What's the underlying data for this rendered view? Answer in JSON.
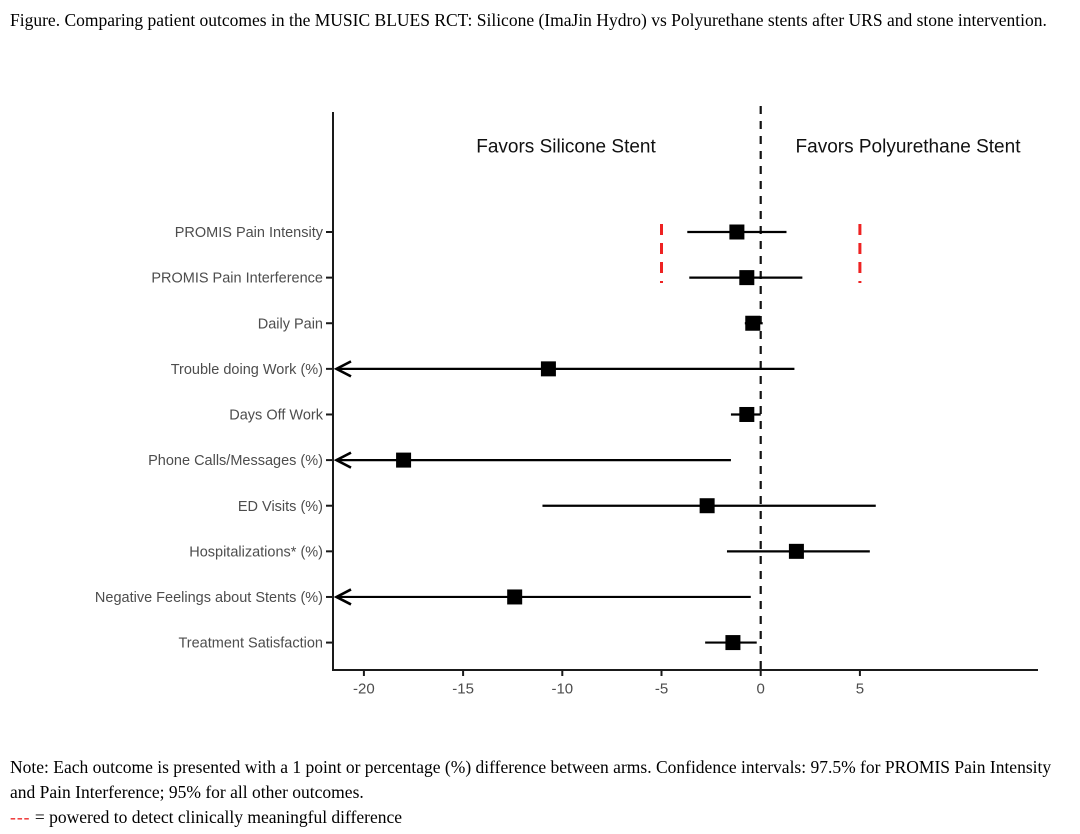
{
  "figure_caption": "Figure. Comparing patient outcomes in the MUSIC BLUES RCT: Silicone (ImaJin Hydro) vs Polyurethane stents after URS and stone intervention.",
  "note": {
    "line1": "Note: Each outcome is presented with a 1 point or percentage (%) difference between arms. Confidence intervals: 97.5% for PROMIS Pain Intensity and Pain Interference; 95% for all other outcomes.",
    "legend_symbol": "---",
    "legend_text": " = powered to detect clinically meaningful difference"
  },
  "chart_data": {
    "type": "forest",
    "title": "",
    "xlabel": "",
    "x_ticks": [
      -20,
      -15,
      -10,
      -5,
      0,
      5
    ],
    "xlim": [
      -21.6,
      14.0
    ],
    "zero_line": 0,
    "grid": false,
    "annotations": {
      "favors_left": "Favors Silicone Stent",
      "favors_right": "Favors Polyurethane Stent"
    },
    "reference_lines": {
      "values": [
        -5,
        5
      ],
      "style": "dashed",
      "meaning": "powered to detect clinically meaningful difference"
    },
    "rows": [
      {
        "label": "PROMIS Pain Intensity",
        "estimate": -1.2,
        "ci_low": -3.7,
        "ci_high": 1.3,
        "arrow_left": false
      },
      {
        "label": "PROMIS Pain Interference",
        "estimate": -0.7,
        "ci_low": -3.6,
        "ci_high": 2.1,
        "arrow_left": false
      },
      {
        "label": "Daily Pain",
        "estimate": -0.4,
        "ci_low": -0.8,
        "ci_high": 0.1,
        "arrow_left": false
      },
      {
        "label": "Trouble doing Work (%)",
        "estimate": -10.7,
        "ci_low": -21.5,
        "ci_high": 1.7,
        "arrow_left": true
      },
      {
        "label": "Days Off Work",
        "estimate": -0.7,
        "ci_low": -1.5,
        "ci_high": 0.0,
        "arrow_left": false
      },
      {
        "label": "Phone Calls/Messages (%)",
        "estimate": -18.0,
        "ci_low": -21.5,
        "ci_high": -1.5,
        "arrow_left": true
      },
      {
        "label": "ED Visits (%)",
        "estimate": -2.7,
        "ci_low": -11.0,
        "ci_high": 5.8,
        "arrow_left": false
      },
      {
        "label": "Hospitalizations* (%)",
        "estimate": 1.8,
        "ci_low": -1.7,
        "ci_high": 5.5,
        "arrow_left": false
      },
      {
        "label": "Negative Feelings about Stents (%)",
        "estimate": -12.4,
        "ci_low": -21.5,
        "ci_high": -0.5,
        "arrow_left": true
      },
      {
        "label": "Treatment Satisfaction",
        "estimate": -1.4,
        "ci_low": -2.8,
        "ci_high": -0.2,
        "arrow_left": false
      }
    ],
    "colors": {
      "marker": "#000000",
      "axis_line": "#1a1a1a",
      "axis_text": "#4d4d4d",
      "annotation_text": "#111111",
      "reference": "#ee2222"
    }
  }
}
